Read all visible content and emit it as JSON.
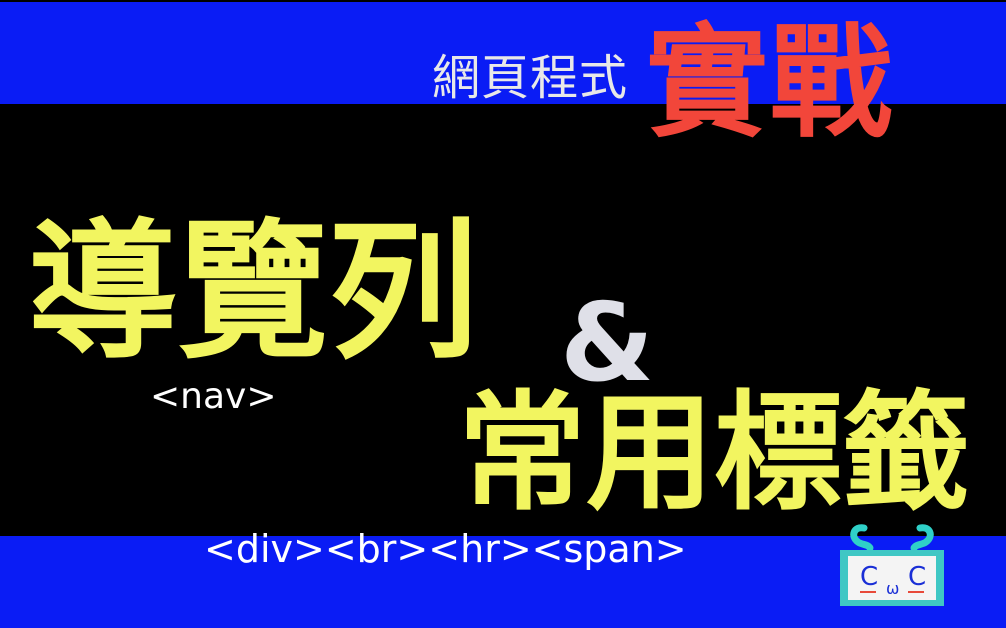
{
  "subtitle": "網頁程式",
  "accent": "實戰",
  "title_line1": "導覽列",
  "tag_nav": "<nav>",
  "ampersand": "&",
  "title_line2": "常用標籤",
  "tags_list": "<div><br><hr><span>",
  "logo": {
    "left_letter": "C",
    "middle_letter": "ω",
    "right_letter": "C"
  },
  "colors": {
    "background": "#000000",
    "band": "#0a1cf5",
    "title": "#f2f560",
    "accent": "#f2463a",
    "text": "#ffffff"
  }
}
